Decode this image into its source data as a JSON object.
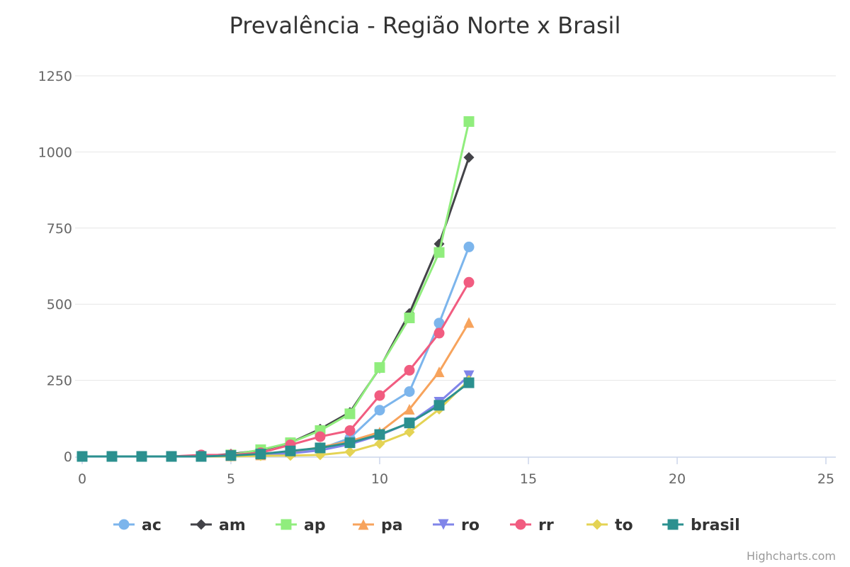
{
  "chart_data": {
    "type": "line",
    "title": "Prevalência - Região Norte x Brasil",
    "xlabel": "",
    "ylabel": "",
    "xlim": [
      0,
      25
    ],
    "ylim": [
      0,
      1250
    ],
    "x_ticks": [
      "0",
      "5",
      "10",
      "15",
      "20",
      "25"
    ],
    "y_ticks": [
      "0",
      "250",
      "500",
      "750",
      "1000",
      "1250"
    ],
    "grid": "horizontal",
    "legend_position": "bottom-center",
    "x": [
      0,
      1,
      2,
      3,
      4,
      5,
      6,
      7,
      8,
      9,
      10,
      11,
      12,
      13
    ],
    "series": [
      {
        "name": "ac",
        "color": "#7cb5ec",
        "marker": "circle",
        "values": [
          0,
          0,
          0,
          0,
          0,
          2,
          5,
          10,
          25,
          60,
          152,
          213,
          438,
          688
        ]
      },
      {
        "name": "am",
        "color": "#434348",
        "marker": "diamond",
        "values": [
          0,
          0,
          0,
          0,
          1,
          8,
          20,
          45,
          90,
          145,
          290,
          470,
          698,
          982
        ]
      },
      {
        "name": "ap",
        "color": "#90ed7d",
        "marker": "square",
        "values": [
          0,
          0,
          0,
          0,
          0,
          5,
          22,
          45,
          85,
          140,
          292,
          455,
          670,
          1100
        ]
      },
      {
        "name": "pa",
        "color": "#f7a35c",
        "marker": "triangle",
        "values": [
          0,
          0,
          0,
          0,
          0,
          2,
          5,
          15,
          30,
          50,
          80,
          155,
          278,
          440
        ]
      },
      {
        "name": "ro",
        "color": "#8085e9",
        "marker": "triangle-down",
        "values": [
          0,
          0,
          0,
          0,
          0,
          2,
          5,
          10,
          20,
          40,
          70,
          110,
          178,
          265
        ]
      },
      {
        "name": "rr",
        "color": "#f15c80",
        "marker": "circle",
        "values": [
          0,
          0,
          0,
          0,
          5,
          5,
          12,
          38,
          65,
          85,
          200,
          283,
          405,
          572
        ]
      },
      {
        "name": "to",
        "color": "#e4d354",
        "marker": "diamond",
        "values": [
          0,
          0,
          0,
          0,
          0,
          0,
          2,
          3,
          5,
          15,
          42,
          80,
          155,
          250
        ]
      },
      {
        "name": "brasil",
        "color": "#2b908f",
        "marker": "square",
        "values": [
          0,
          0,
          0,
          0,
          0,
          3,
          8,
          18,
          28,
          45,
          72,
          110,
          168,
          242
        ]
      }
    ]
  },
  "credits": "Highcharts.com"
}
